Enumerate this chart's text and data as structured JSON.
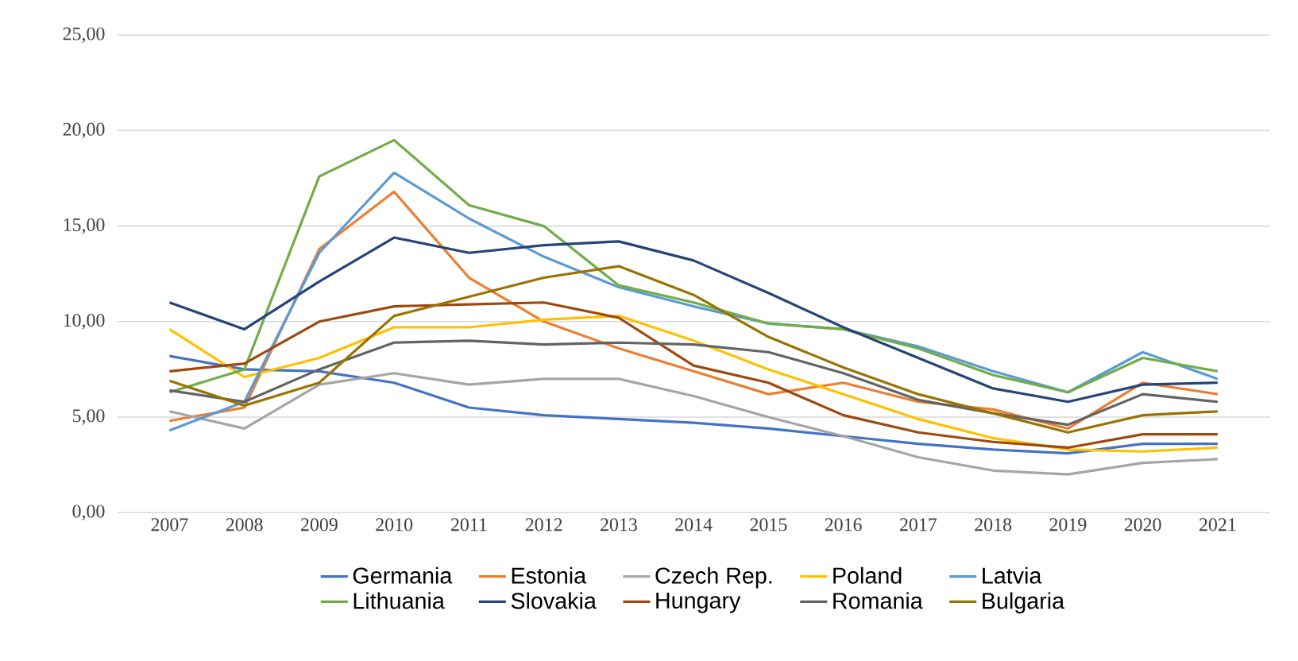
{
  "chart_data": {
    "type": "line",
    "categories": [
      "2007",
      "2008",
      "2009",
      "2010",
      "2011",
      "2012",
      "2013",
      "2014",
      "2015",
      "2016",
      "2017",
      "2018",
      "2019",
      "2020",
      "2021"
    ],
    "ylim": [
      0,
      25
    ],
    "yticks": [
      {
        "value": 0,
        "label": "0,00"
      },
      {
        "value": 5,
        "label": "5,00"
      },
      {
        "value": 10,
        "label": "10,00"
      },
      {
        "value": 15,
        "label": "15,00"
      },
      {
        "value": 20,
        "label": "20,00"
      },
      {
        "value": 25,
        "label": "25,00"
      }
    ],
    "grid": "y",
    "legend": "bottom",
    "marker": "none",
    "line_style": "solid",
    "series": [
      {
        "name": "Germania",
        "color": "#4472c4",
        "values": [
          8.2,
          7.5,
          7.4,
          6.8,
          5.5,
          5.1,
          4.9,
          4.7,
          4.4,
          4.0,
          3.6,
          3.3,
          3.1,
          3.6,
          3.6
        ]
      },
      {
        "name": "Estonia",
        "color": "#ed7d31",
        "values": [
          4.8,
          5.5,
          13.8,
          16.8,
          12.3,
          10.0,
          8.6,
          7.4,
          6.2,
          6.8,
          5.8,
          5.4,
          4.4,
          6.8,
          6.2
        ]
      },
      {
        "name": "Czech Rep.",
        "color": "#a5a5a5",
        "values": [
          5.3,
          4.4,
          6.7,
          7.3,
          6.7,
          7.0,
          7.0,
          6.1,
          5.0,
          4.0,
          2.9,
          2.2,
          2.0,
          2.6,
          2.8
        ]
      },
      {
        "name": "Poland",
        "color": "#ffc000",
        "values": [
          9.6,
          7.1,
          8.1,
          9.7,
          9.7,
          10.1,
          10.3,
          9.0,
          7.5,
          6.2,
          4.9,
          3.9,
          3.3,
          3.2,
          3.4
        ]
      },
      {
        "name": "Latvia",
        "color": "#5b9bd5",
        "values": [
          4.3,
          5.8,
          13.6,
          17.8,
          15.4,
          13.4,
          11.8,
          10.8,
          9.9,
          9.6,
          8.7,
          7.4,
          6.3,
          8.4,
          7.0
        ]
      },
      {
        "name": "Lithuania",
        "color": "#70ad47",
        "values": [
          6.3,
          7.5,
          17.6,
          19.5,
          16.1,
          15.0,
          11.9,
          11.0,
          9.9,
          9.6,
          8.6,
          7.2,
          6.3,
          8.1,
          7.4
        ]
      },
      {
        "name": "Slovakia",
        "color": "#264478",
        "values": [
          11.0,
          9.6,
          12.1,
          14.4,
          13.6,
          14.0,
          14.2,
          13.2,
          11.5,
          9.7,
          8.1,
          6.5,
          5.8,
          6.7,
          6.8
        ]
      },
      {
        "name": "Hungary",
        "color": "#9e480e",
        "values": [
          7.4,
          7.8,
          10.0,
          10.8,
          10.9,
          11.0,
          10.2,
          7.7,
          6.8,
          5.1,
          4.2,
          3.7,
          3.4,
          4.1,
          4.1
        ]
      },
      {
        "name": "Romania",
        "color": "#636363",
        "values": [
          6.4,
          5.8,
          7.5,
          8.9,
          9.0,
          8.8,
          8.9,
          8.8,
          8.4,
          7.3,
          5.9,
          5.2,
          4.6,
          6.2,
          5.8
        ]
      },
      {
        "name": "Bulgaria",
        "color": "#997300",
        "values": [
          6.9,
          5.6,
          6.8,
          10.3,
          11.3,
          12.3,
          12.9,
          11.4,
          9.2,
          7.6,
          6.2,
          5.2,
          4.2,
          5.1,
          5.3
        ]
      }
    ]
  }
}
